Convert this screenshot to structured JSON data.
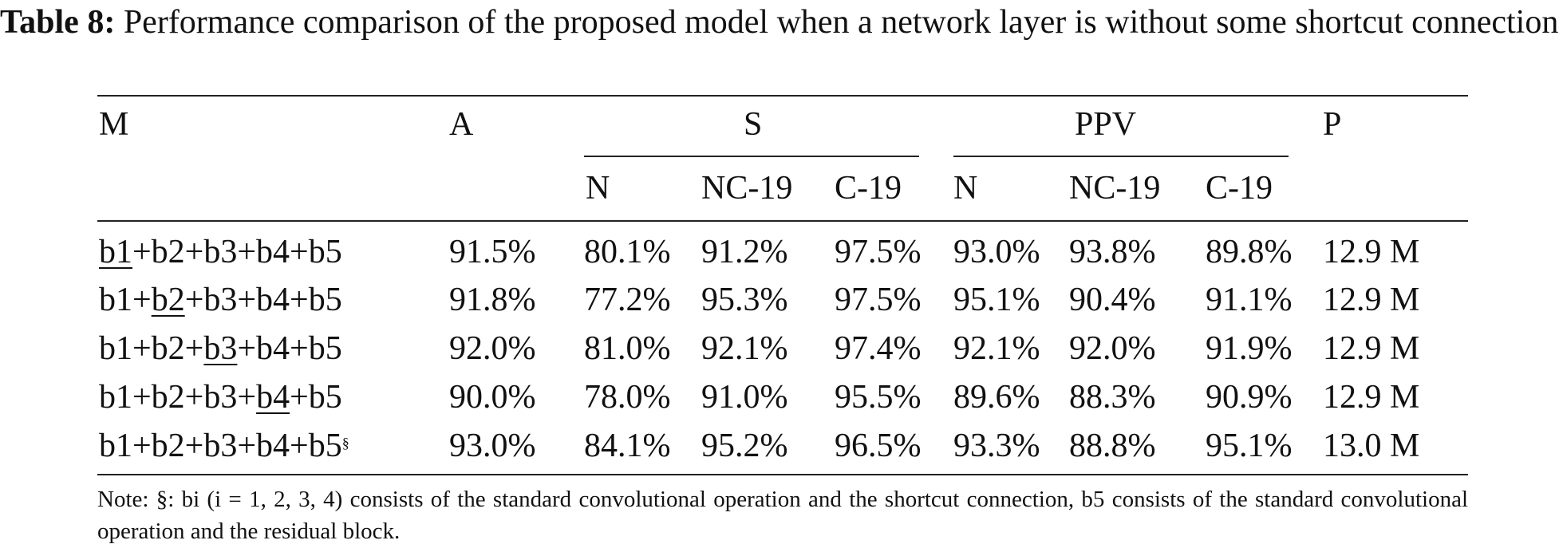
{
  "caption": {
    "label": "Table 8:",
    "text": "Performance comparison of the proposed model when a network layer is without some shortcut connection"
  },
  "headers": {
    "model": "M",
    "accuracy": "A",
    "sensitivity": "S",
    "ppv": "PPV",
    "params": "P",
    "sub": [
      "N",
      "NC-19",
      "C-19",
      "N",
      "NC-19",
      "C-19"
    ]
  },
  "rows": [
    {
      "model": {
        "pre": "",
        "u": "b1",
        "post": "+b2+b3+b4+b5",
        "sup": ""
      },
      "values": [
        "91.5%",
        "80.1%",
        "91.2%",
        "97.5%",
        "93.0%",
        "93.8%",
        "89.8%",
        "12.9 M"
      ]
    },
    {
      "model": {
        "pre": "b1+",
        "u": "b2",
        "post": "+b3+b4+b5",
        "sup": ""
      },
      "values": [
        "91.8%",
        "77.2%",
        "95.3%",
        "97.5%",
        "95.1%",
        "90.4%",
        "91.1%",
        "12.9 M"
      ]
    },
    {
      "model": {
        "pre": "b1+b2+",
        "u": "b3",
        "post": "+b4+b5",
        "sup": ""
      },
      "values": [
        "92.0%",
        "81.0%",
        "92.1%",
        "97.4%",
        "92.1%",
        "92.0%",
        "91.9%",
        "12.9 M"
      ]
    },
    {
      "model": {
        "pre": "b1+b2+b3+",
        "u": "b4",
        "post": "+b5",
        "sup": ""
      },
      "values": [
        "90.0%",
        "78.0%",
        "91.0%",
        "95.5%",
        "89.6%",
        "88.3%",
        "90.9%",
        "12.9 M"
      ]
    },
    {
      "model": {
        "pre": "b1+b2+b3+b4+b5",
        "u": "",
        "post": "",
        "sup": "§"
      },
      "values": [
        "93.0%",
        "84.1%",
        "95.2%",
        "96.5%",
        "93.3%",
        "88.8%",
        "95.1%",
        "13.0 M"
      ]
    }
  ],
  "note": "Note: §: bi (i = 1, 2, 3, 4) consists of the standard convolutional operation and the shortcut connection, b5 consists of the standard convolutional operation and the residual block."
}
